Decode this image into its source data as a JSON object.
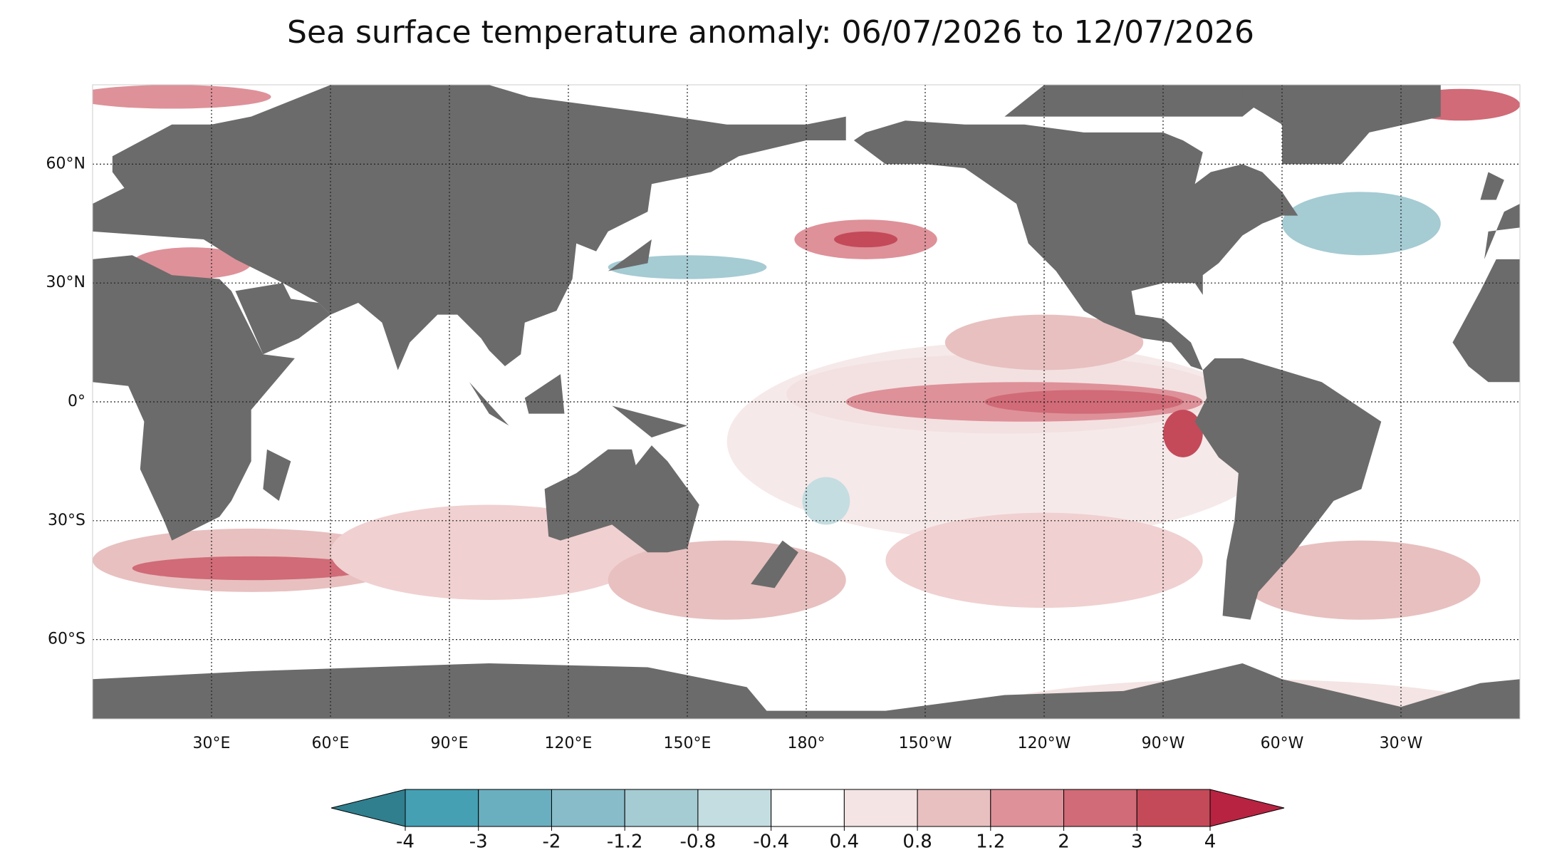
{
  "map": {
    "title": "Sea surface temperature anomaly: 06/07/2026 to 12/07/2026",
    "lat_ticks": [
      {
        "value": 60,
        "label": "60°N"
      },
      {
        "value": 30,
        "label": "30°N"
      },
      {
        "value": 0,
        "label": "0°"
      },
      {
        "value": -30,
        "label": "30°S"
      },
      {
        "value": -60,
        "label": "60°S"
      }
    ],
    "lon_ticks": [
      {
        "value": 30,
        "label": "30°E"
      },
      {
        "value": 60,
        "label": "60°E"
      },
      {
        "value": 90,
        "label": "90°E"
      },
      {
        "value": 120,
        "label": "120°E"
      },
      {
        "value": 150,
        "label": "150°E"
      },
      {
        "value": 180,
        "label": "180°"
      },
      {
        "value": 210,
        "label": "150°W"
      },
      {
        "value": 240,
        "label": "120°W"
      },
      {
        "value": 270,
        "label": "90°W"
      },
      {
        "value": 300,
        "label": "60°W"
      },
      {
        "value": 330,
        "label": "30°W"
      }
    ],
    "colorbar": {
      "levels": [
        -4,
        -3,
        -2,
        -1.2,
        -0.8,
        -0.4,
        0.4,
        0.8,
        1.2,
        2,
        3,
        4
      ],
      "colors": [
        "#46a0b4",
        "#6aafc0",
        "#88bcc9",
        "#a5cbd3",
        "#c4dde1",
        "#ffffff",
        "#f4e4e4",
        "#e8c0c0",
        "#de9199",
        "#d06b77",
        "#c44a59"
      ],
      "extend_colors": [
        "#2f7f8f",
        "#b82342"
      ]
    }
  }
}
